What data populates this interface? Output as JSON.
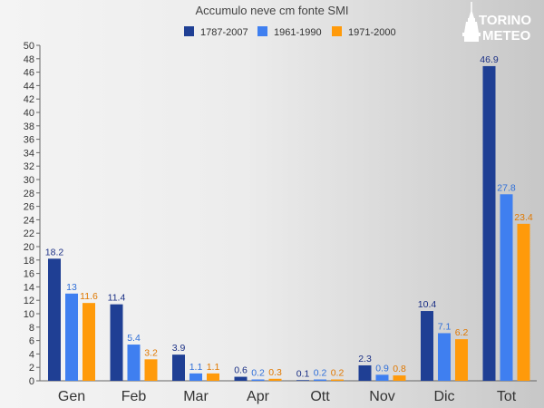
{
  "chart_data": {
    "type": "bar",
    "title": "Accumulo neve cm fonte SMI",
    "categories": [
      "Gen",
      "Feb",
      "Mar",
      "Apr",
      "Ott",
      "Nov",
      "Dic",
      "Tot"
    ],
    "series": [
      {
        "name": "1787-2007",
        "color": "#1f3f94",
        "labelColor": "#1a2f85",
        "values": [
          18.2,
          11.4,
          3.9,
          0.6,
          0.1,
          2.3,
          10.4,
          46.9
        ]
      },
      {
        "name": "1961-1990",
        "color": "#3f7ff0",
        "labelColor": "#2f6fd8",
        "values": [
          13,
          5.4,
          1.1,
          0.2,
          0.2,
          0.9,
          7.1,
          27.8
        ]
      },
      {
        "name": "1971-2000",
        "color": "#ff9a0a",
        "labelColor": "#e07800",
        "values": [
          11.6,
          3.2,
          1.1,
          0.3,
          0.2,
          0.8,
          6.2,
          23.4
        ]
      }
    ],
    "ylim": [
      0,
      50
    ],
    "ytick_step": 2,
    "legend_position": "top",
    "xlabel": "",
    "ylabel": ""
  },
  "logo": {
    "line1": "TORINO",
    "line2": "METEO",
    "color": "#ffffff"
  }
}
